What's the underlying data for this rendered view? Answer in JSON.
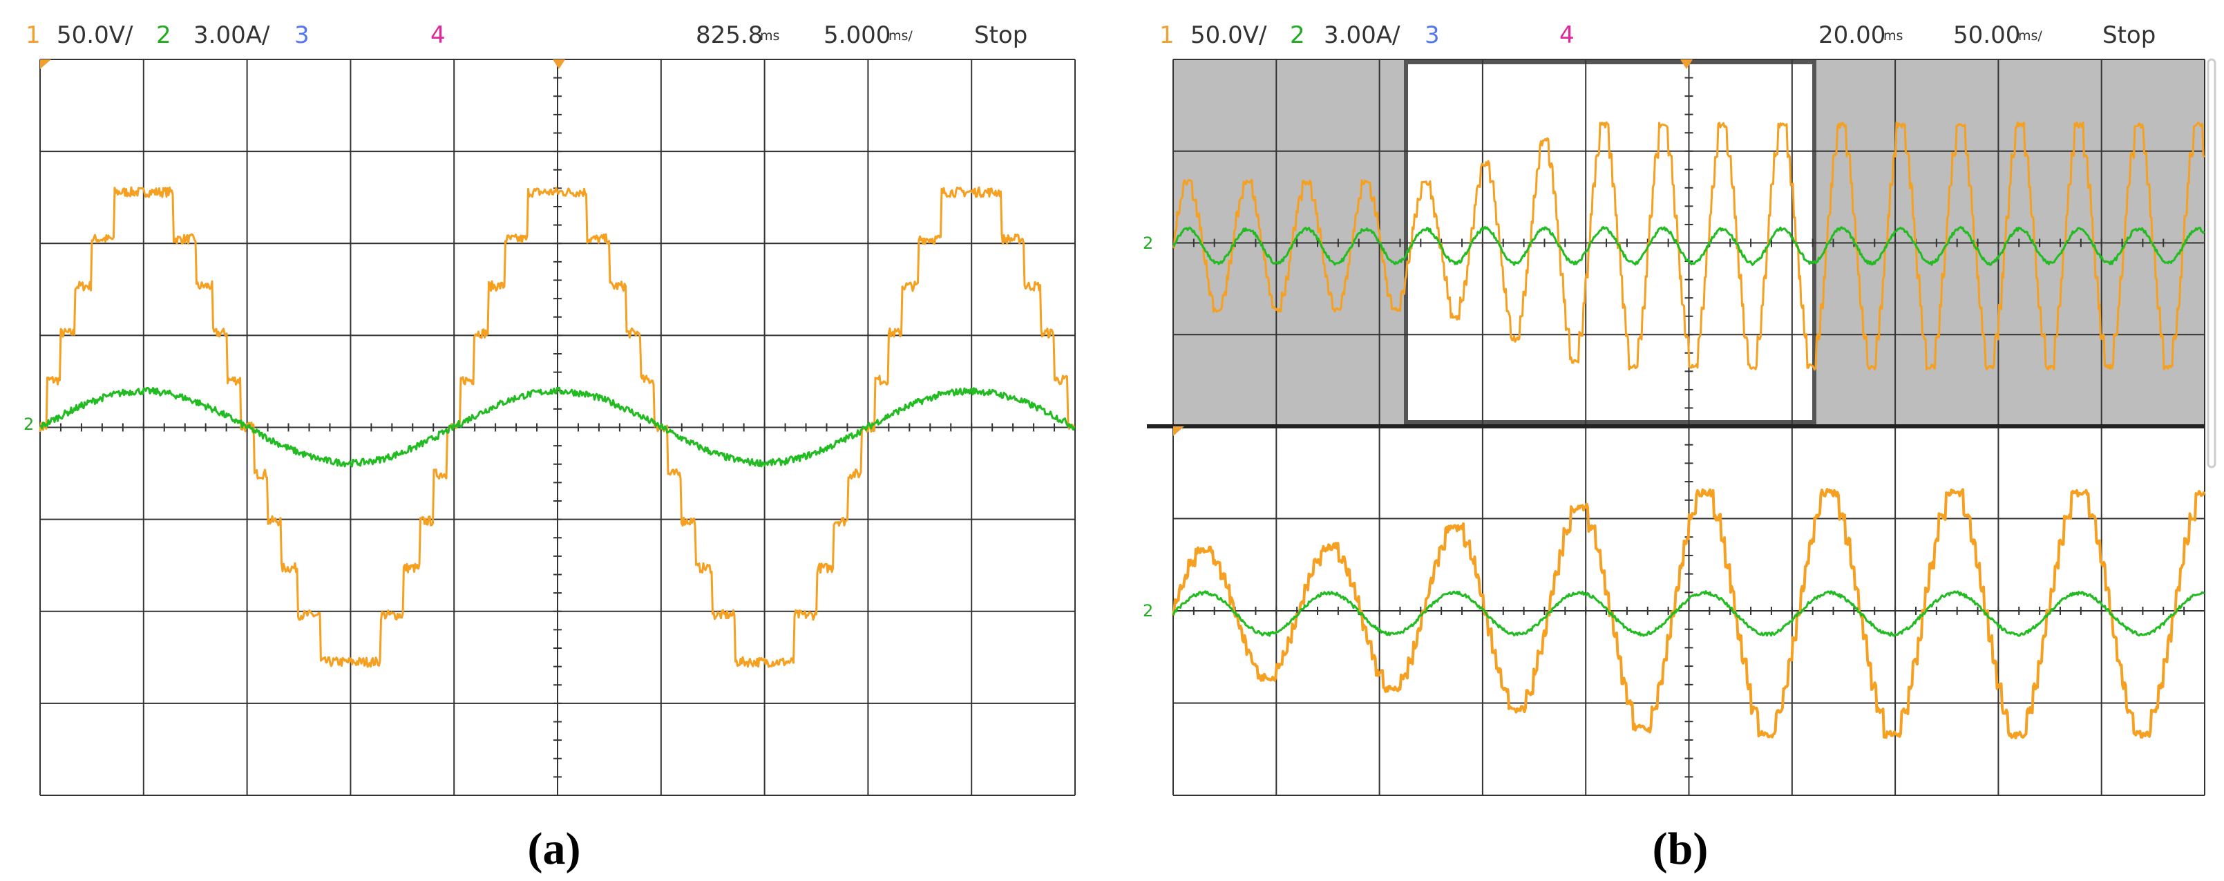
{
  "panels": [
    {
      "header": {
        "ch1": "1",
        "ch1_scale": "50.0V/",
        "ch2": "2",
        "ch2_scale": "3.00A/",
        "ch3": "3",
        "ch4": "4",
        "time_value": "825.8",
        "time_unit": "ms",
        "scale_value": "5.000",
        "scale_unit": "ms/",
        "status": "Stop"
      },
      "ground_marker": "2",
      "caption": "(a)"
    },
    {
      "header": {
        "ch1": "1",
        "ch1_scale": "50.0V/",
        "ch2": "2",
        "ch2_scale": "3.00A/",
        "ch3": "3",
        "ch4": "4",
        "time_value": "20.00",
        "time_unit": "ms",
        "scale_value": "50.00",
        "scale_unit": "ms/",
        "status": "Stop"
      },
      "ground_marker": "2",
      "zoom_ground_marker": "2",
      "caption": "(b)"
    }
  ]
}
